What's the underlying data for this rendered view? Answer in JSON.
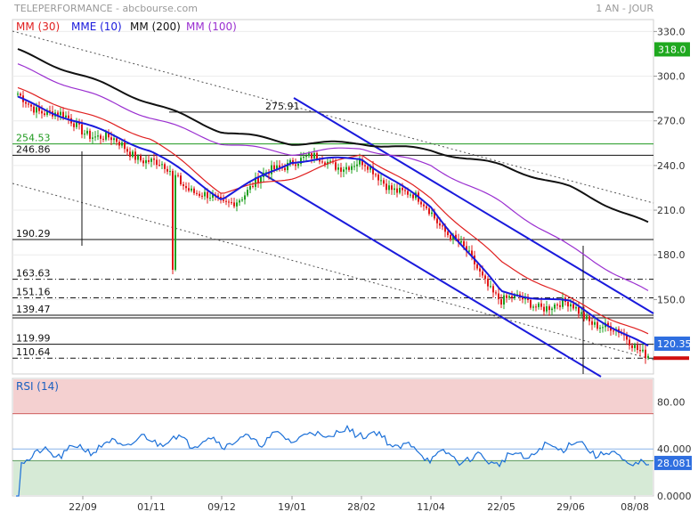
{
  "header": {
    "title": "TELEPERFORMANCE - abcbourse.com",
    "period": "1 AN - JOUR"
  },
  "legend": [
    {
      "label": "MM (30)",
      "color": "#e02020"
    },
    {
      "label": "MME (10)",
      "color": "#1a1adc"
    },
    {
      "label": "MM (200)",
      "color": "#111111"
    },
    {
      "label": "MM (100)",
      "color": "#9a2fd0"
    }
  ],
  "colors": {
    "up": "#20a020",
    "down": "#e01818",
    "mm30": "#e02020",
    "mme10": "#1a1adc",
    "mm200": "#111111",
    "mm100": "#9a2fd0",
    "channel": "#1a1adc",
    "rsi": "#1a6fd8",
    "last_price_bg": "#1fa81f",
    "current_bg": "#2f6fe0",
    "rsi_last_bg": "#2f6fe0",
    "level_green": "#1f9a1f"
  },
  "price_axis": {
    "ticks": [
      "330.0",
      "300.0",
      "270.0",
      "240.0",
      "210.0",
      "180.0",
      "150.0",
      "120.0"
    ],
    "tick_values": [
      330,
      300,
      270,
      240,
      210,
      180,
      150,
      120
    ],
    "last_price_label": "318.0",
    "last_price_value": 318,
    "current_label": "120.35",
    "current_value": 120.35
  },
  "levels": [
    {
      "label": "275.91",
      "value": 275.91,
      "style": "solid"
    },
    {
      "label": "254.53",
      "value": 254.53,
      "style": "green"
    },
    {
      "label": "246.86",
      "value": 246.86,
      "style": "solid"
    },
    {
      "label": "190.29",
      "value": 190.29,
      "style": "solid"
    },
    {
      "label": "163.63",
      "value": 163.63,
      "style": "dashdot"
    },
    {
      "label": "151.16",
      "value": 151.16,
      "style": "dashdot"
    },
    {
      "label": "139.47",
      "value": 139.47,
      "style": "double"
    },
    {
      "label": "119.99",
      "value": 119.99,
      "style": "solid"
    },
    {
      "label": "110.64",
      "value": 110.64,
      "style": "dashdot"
    }
  ],
  "x_axis": {
    "labels": [
      "22/09",
      "01/11",
      "09/12",
      "19/01",
      "28/02",
      "11/04",
      "22/05",
      "29/06",
      "08/08"
    ]
  },
  "rsi": {
    "title": "RSI (14)",
    "ticks": [
      "80.00",
      "40.000",
      "0.0000"
    ],
    "tick_values": [
      80,
      40,
      0
    ],
    "overbought": 70,
    "oversold": 30,
    "last_label": "28.081",
    "last_value": 28.081
  },
  "chart_data": {
    "type": "candlestick",
    "x": [
      "22/09",
      "01/11",
      "09/12",
      "19/01",
      "28/02",
      "11/04",
      "22/05",
      "29/06",
      "08/08"
    ],
    "close_at_x": [
      265,
      243,
      212,
      245,
      240,
      210,
      150,
      145,
      120
    ],
    "mme10_at_x": [
      268,
      250,
      218,
      243,
      245,
      212,
      155,
      148,
      123
    ],
    "mm30_at_x": [
      275,
      258,
      222,
      232,
      248,
      218,
      175,
      150,
      130
    ],
    "mm100_at_x": [
      290,
      272,
      255,
      248,
      252,
      240,
      215,
      185,
      160
    ],
    "mm200_at_x": [
      300,
      282,
      263,
      255,
      255,
      250,
      240,
      225,
      205
    ],
    "rsi_at_x": [
      40,
      48,
      46,
      50,
      55,
      34,
      30,
      45,
      28
    ],
    "ylim": [
      100,
      338
    ],
    "rsi_ylim": [
      0,
      100
    ]
  }
}
